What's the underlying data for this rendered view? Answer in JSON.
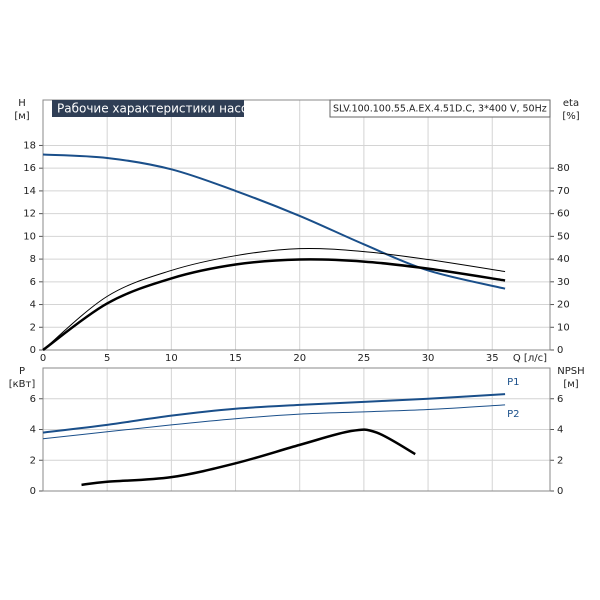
{
  "chart_data": [
    {
      "type": "line",
      "title": "Рабочие характеристики насоса",
      "subtitle": "SLV.100.100.55.A.EX.4.51D.C, 3*400 V, 50Hz",
      "xlabel": "Q [л/с]",
      "ylabel": "H",
      "yunit": "[м]",
      "y2label": "eta",
      "y2unit": "[%]",
      "xlim": [
        0,
        39.5
      ],
      "xticks": [
        0,
        5,
        10,
        15,
        20,
        25,
        30,
        35
      ],
      "xtick_labels": true,
      "ylim": [
        0,
        22
      ],
      "yticks": [
        0,
        2,
        4,
        6,
        8,
        10,
        12,
        14,
        16,
        18
      ],
      "y2lim": [
        0,
        110
      ],
      "y2ticks": [
        0,
        10,
        20,
        30,
        40,
        50,
        60,
        70,
        80
      ],
      "grid": true,
      "series": [
        {
          "color": "#1a4f8a",
          "line_width": 2,
          "x": [
            0,
            5,
            10,
            15,
            20,
            25,
            30,
            36
          ],
          "values": [
            17.2,
            16.9,
            15.9,
            14,
            11.8,
            9.3,
            7,
            5.4
          ]
        },
        {
          "color": "#000000",
          "line_width": 1,
          "axis": "y2",
          "x": [
            0,
            5,
            10,
            15,
            20,
            25,
            30,
            36
          ],
          "values": [
            0,
            23.6,
            35,
            41.5,
            44.6,
            43.3,
            39.8,
            34.5
          ]
        },
        {
          "color": "#000000",
          "line_width": 2.5,
          "axis": "y2",
          "x": [
            0,
            5,
            10,
            15,
            20,
            25,
            30,
            36
          ],
          "values": [
            0,
            20.5,
            31.5,
            37.6,
            39.8,
            38.9,
            35.8,
            30.6
          ]
        }
      ]
    },
    {
      "type": "line",
      "ylabel": "P",
      "yunit": "[кВт]",
      "y2label": "NPSH",
      "y2unit": "[м]",
      "xlim": [
        0,
        39.5
      ],
      "xticks": [
        0,
        5,
        10,
        15,
        20,
        25,
        30,
        35
      ],
      "xtick_labels": false,
      "ylim": [
        0,
        8
      ],
      "yticks": [
        0,
        2,
        4,
        6
      ],
      "y2lim": [
        0,
        8
      ],
      "y2ticks": [
        0,
        2,
        4,
        6
      ],
      "grid": true,
      "series": [
        {
          "name": "P1",
          "color": "#1a4f8a",
          "line_width": 2,
          "x": [
            0,
            5,
            10,
            15,
            20,
            25,
            30,
            36
          ],
          "values": [
            3.8,
            4.3,
            4.9,
            5.35,
            5.6,
            5.8,
            6.0,
            6.3
          ]
        },
        {
          "name": "P2",
          "color": "#1a4f8a",
          "line_width": 1,
          "x": [
            0,
            5,
            10,
            15,
            20,
            25,
            30,
            36
          ],
          "values": [
            3.4,
            3.85,
            4.3,
            4.7,
            5.0,
            5.15,
            5.3,
            5.6
          ]
        },
        {
          "color": "#000000",
          "line_width": 2.5,
          "axis": "y2",
          "x": [
            3,
            5,
            10,
            15,
            20,
            24,
            26,
            29
          ],
          "values": [
            0.4,
            0.6,
            0.9,
            1.8,
            3.0,
            3.9,
            3.8,
            2.4
          ]
        }
      ]
    }
  ]
}
